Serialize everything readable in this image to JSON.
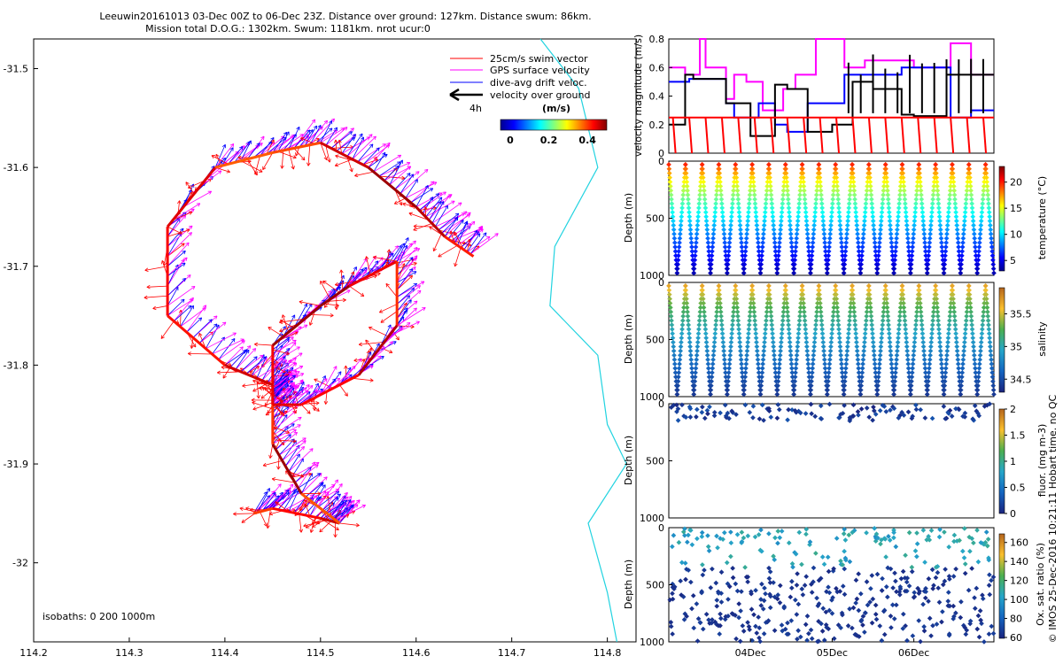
{
  "title": {
    "line1": "Leeuwin20161013 03-Dec 00Z to 06-Dec 23Z. Distance over ground: 127km. Distance swum: 86km.",
    "line2": "Mission total D.O.G.: 1302km. Swum: 1181km. nrot ucur:0"
  },
  "side_label": "© IMOS 25-Dec-2016 10:21:11 Hobart time. no QC",
  "chart_data": [
    {
      "type": "scatter",
      "panel": "glider track map",
      "x_ticks": [
        "114.2",
        "114.3",
        "114.4",
        "114.5",
        "114.6",
        "114.7",
        "114.8"
      ],
      "y_ticks": [
        "-31.5",
        "-31.6",
        "-31.7",
        "-31.8",
        "-31.9",
        "-32"
      ],
      "xlim": [
        114.2,
        114.83
      ],
      "ylim": [
        -32.08,
        -31.47
      ],
      "legend": {
        "position": "top-right",
        "entries": [
          {
            "label": "25cm/s swim vector",
            "color": "#ff0000"
          },
          {
            "label": "GPS surface velocity",
            "color": "#ff00ff"
          },
          {
            "label": "dive-avg drift veloc.",
            "color": "#0000ff"
          },
          {
            "label": "velocity over ground",
            "color": "#000000"
          }
        ],
        "scale_label": "4h"
      },
      "colorbar": {
        "label": "(m/s)",
        "ticks": [
          "0",
          "0.2",
          "0.4"
        ],
        "range": [
          -0.05,
          0.5
        ]
      },
      "isobath_label": "isobaths: 0   200   1000m",
      "track": [
        [
          114.43,
          -31.95
        ],
        [
          114.45,
          -31.945
        ],
        [
          114.5,
          -31.955
        ],
        [
          114.52,
          -31.96
        ],
        [
          114.48,
          -31.93
        ],
        [
          114.45,
          -31.88
        ],
        [
          114.45,
          -31.84
        ],
        [
          114.45,
          -31.82
        ],
        [
          114.45,
          -31.78
        ],
        [
          114.5,
          -31.74
        ],
        [
          114.53,
          -31.72
        ],
        [
          114.58,
          -31.695
        ],
        [
          114.58,
          -31.76
        ],
        [
          114.54,
          -31.81
        ],
        [
          114.48,
          -31.84
        ],
        [
          114.45,
          -31.84
        ],
        [
          114.45,
          -31.82
        ],
        [
          114.4,
          -31.8
        ],
        [
          114.34,
          -31.75
        ],
        [
          114.34,
          -31.66
        ],
        [
          114.39,
          -31.6
        ],
        [
          114.45,
          -31.585
        ],
        [
          114.5,
          -31.575
        ],
        [
          114.55,
          -31.6
        ],
        [
          114.6,
          -31.64
        ],
        [
          114.63,
          -31.67
        ],
        [
          114.66,
          -31.69
        ]
      ],
      "coastline": [
        [
          114.73,
          -31.47
        ],
        [
          114.77,
          -31.52
        ],
        [
          114.79,
          -31.6
        ],
        [
          114.745,
          -31.68
        ],
        [
          114.74,
          -31.74
        ],
        [
          114.79,
          -31.79
        ],
        [
          114.8,
          -31.86
        ],
        [
          114.82,
          -31.9
        ],
        [
          114.78,
          -31.96
        ],
        [
          114.8,
          -32.03
        ],
        [
          114.81,
          -32.08
        ]
      ]
    },
    {
      "type": "line",
      "panel": "velocity magnitude",
      "ylabel": "velocity magnitude (m/s)",
      "y_ticks": [
        "0",
        "0.2",
        "0.4",
        "0.6",
        "0.8"
      ],
      "ylim": [
        0,
        0.8
      ],
      "xlim": [
        3.0,
        6.98
      ],
      "series": [
        {
          "color": "#ff00ff",
          "x": [
            3.0,
            3.2,
            3.2,
            3.38,
            3.38,
            3.45,
            3.45,
            3.7,
            3.7,
            3.8,
            3.8,
            3.95,
            3.95,
            4.15,
            4.15,
            4.4,
            4.4,
            4.55,
            4.55,
            4.8,
            4.8,
            5.15,
            5.15,
            5.4,
            5.4,
            6.0,
            6.0,
            6.45,
            6.45,
            6.7,
            6.7,
            6.98
          ],
          "values": [
            0.6,
            0.6,
            0.55,
            0.55,
            0.8,
            0.8,
            0.6,
            0.6,
            0.38,
            0.38,
            0.55,
            0.55,
            0.5,
            0.5,
            0.3,
            0.3,
            0.45,
            0.45,
            0.55,
            0.55,
            0.8,
            0.8,
            0.6,
            0.6,
            0.65,
            0.65,
            0.6,
            0.6,
            0.77,
            0.77,
            0.55,
            0.55
          ]
        },
        {
          "color": "#0000ff",
          "x": [
            3.0,
            3.25,
            3.25,
            3.7,
            3.7,
            3.8,
            3.8,
            4.1,
            4.1,
            4.3,
            4.3,
            4.45,
            4.45,
            4.7,
            4.7,
            5.15,
            5.15,
            5.85,
            5.85,
            6.45,
            6.45,
            6.7,
            6.7,
            6.98
          ],
          "values": [
            0.5,
            0.5,
            0.52,
            0.52,
            0.35,
            0.35,
            0.25,
            0.25,
            0.35,
            0.35,
            0.2,
            0.2,
            0.15,
            0.15,
            0.35,
            0.35,
            0.55,
            0.55,
            0.6,
            0.6,
            0.25,
            0.25,
            0.3,
            0.3
          ]
        },
        {
          "color": "#000000",
          "x": [
            3.0,
            3.2,
            3.2,
            3.3,
            3.3,
            3.55,
            3.55,
            3.7,
            3.7,
            4.0,
            4.0,
            4.3,
            4.3,
            4.45,
            4.45,
            4.7,
            4.7,
            5.0,
            5.0,
            5.25,
            5.25,
            5.5,
            5.5,
            5.85,
            5.85,
            6.0,
            6.0,
            6.4,
            6.4,
            6.5,
            6.5,
            6.98
          ],
          "values": [
            0.2,
            0.2,
            0.55,
            0.55,
            0.52,
            0.52,
            0.52,
            0.52,
            0.35,
            0.35,
            0.12,
            0.12,
            0.48,
            0.48,
            0.45,
            0.45,
            0.15,
            0.15,
            0.2,
            0.2,
            0.5,
            0.5,
            0.45,
            0.45,
            0.27,
            0.27,
            0.26,
            0.26,
            0.55,
            0.55,
            0.55,
            0.55
          ]
        },
        {
          "color": "#ff0000",
          "x": [
            3.0,
            6.98
          ],
          "values": [
            0.25,
            0.25
          ]
        }
      ]
    },
    {
      "type": "scatter",
      "panel": "temperature",
      "ylabel": "Depth (m)",
      "y_ticks": [
        "0",
        "500",
        "1000"
      ],
      "ylim": [
        1000,
        0
      ],
      "colorbar": {
        "label": "temperature (°C)",
        "ticks": [
          "5",
          "10",
          "15",
          "20"
        ],
        "range": [
          3,
          23
        ]
      },
      "profile": {
        "cycles": 19.5,
        "min_depth": 30,
        "max_depth": 980,
        "surface_value": 22,
        "deep_value": 4
      }
    },
    {
      "type": "scatter",
      "panel": "salinity",
      "ylabel": "Depth (m)",
      "y_ticks": [
        "0",
        "500",
        "1000"
      ],
      "ylim": [
        1000,
        0
      ],
      "colorbar": {
        "label": "salinity",
        "ticks": [
          "34.5",
          "35",
          "35.5"
        ],
        "range": [
          34.3,
          35.9
        ]
      },
      "profile": {
        "cycles": 19.5,
        "min_depth": 30,
        "max_depth": 980,
        "surface_value": 35.85,
        "deep_value": 34.4
      }
    },
    {
      "type": "scatter",
      "panel": "fluorescence",
      "ylabel": "Depth (m)",
      "y_ticks": [
        "0",
        "500",
        "1000"
      ],
      "ylim": [
        1000,
        0
      ],
      "colorbar": {
        "label": "fluor. (mg m-3)",
        "ticks": [
          "0",
          "0.5",
          "1",
          "1.5",
          "2"
        ],
        "range": [
          0,
          2
        ]
      },
      "profile": {
        "cycles": 19.5,
        "min_depth": 0,
        "max_depth": 150,
        "surface_value": 0.3,
        "deep_value": 0
      }
    },
    {
      "type": "scatter",
      "panel": "oxygen saturation",
      "ylabel": "Depth (m)",
      "x_ticks": [
        "04Dec",
        "05Dec",
        "06Dec"
      ],
      "xlim": [
        3.0,
        6.98
      ],
      "y_ticks": [
        "0",
        "500",
        "1000"
      ],
      "ylim": [
        1000,
        0
      ],
      "colorbar": {
        "label": "Ox. sat. ratio (%)",
        "ticks": [
          "60",
          "80",
          "100",
          "120",
          "140",
          "160"
        ],
        "range": [
          60,
          170
        ]
      },
      "profile": {
        "cycles": 19.5,
        "min_depth": 0,
        "max_depth": 1000,
        "surface_value": 105,
        "deep_value": 62
      }
    }
  ]
}
